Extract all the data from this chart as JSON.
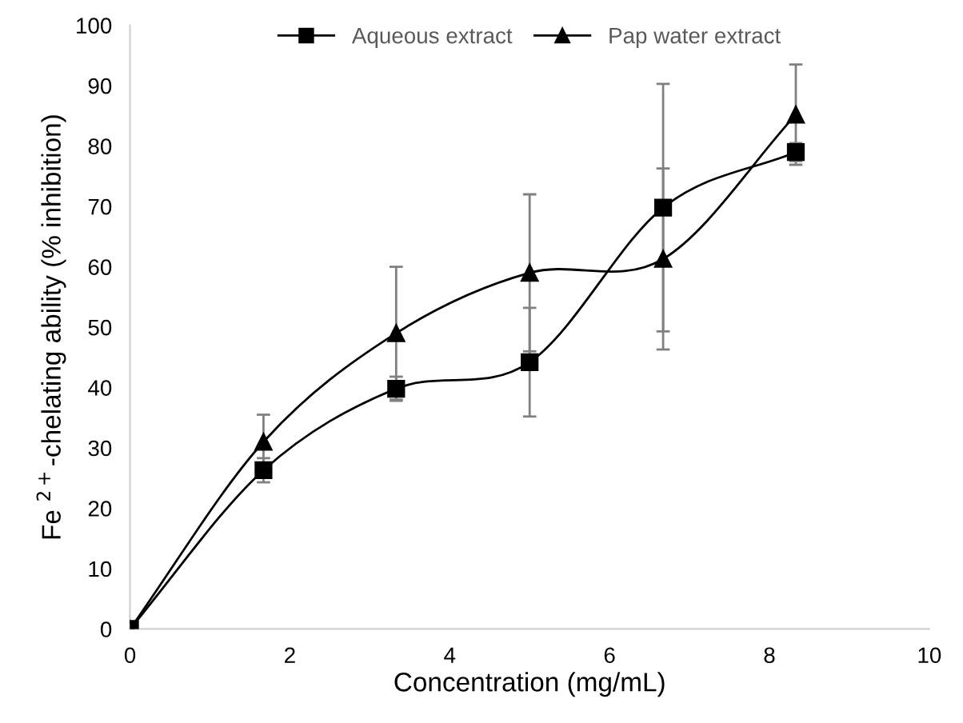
{
  "chart_data": {
    "type": "line",
    "xlabel": "Concentration (mg/mL)",
    "ylabel": "Fe $^{2+}$-chelating ability (% inhibition)",
    "x": [
      0,
      1.67,
      3.33,
      5,
      6.67,
      8.33
    ],
    "series": [
      {
        "name": "Aqueous extract",
        "color": "#000000",
        "marker": "square",
        "values": [
          0,
          26.3,
          39.8,
          44.2,
          69.8,
          79
        ],
        "errors": [
          null,
          2,
          2,
          9,
          20.5,
          1.5
        ]
      },
      {
        "name": "Pap water extract",
        "color": "#000000",
        "marker": "triangle",
        "values": [
          0,
          31,
          49,
          59,
          61.3,
          85.2
        ],
        "errors": [
          null,
          4.5,
          11,
          13,
          15,
          8.3
        ]
      }
    ],
    "xlim": [
      0,
      10
    ],
    "xticks": [
      0,
      2,
      4,
      6,
      8,
      10
    ],
    "ylim": [
      0,
      100
    ],
    "yticks": [
      0,
      10,
      20,
      30,
      40,
      50,
      60,
      70,
      80,
      90,
      100
    ],
    "grid": false,
    "legend": "top",
    "line_style": "solid"
  }
}
